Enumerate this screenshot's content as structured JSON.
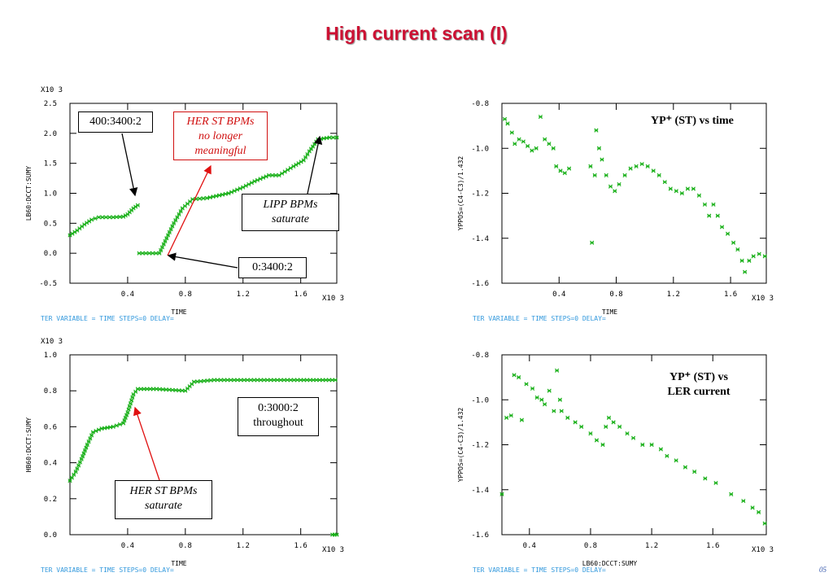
{
  "slide": {
    "title": "High current scan (I)",
    "page_number": "05"
  },
  "colors": {
    "marker": "#19b019",
    "title": "#cc1133",
    "arrow_red": "#e01010"
  },
  "chart_data": [
    {
      "id": "tl",
      "type": "line",
      "ylabel": "LB60:DCCT:SUMY",
      "xlabel": "TIME",
      "x_multiplier": "X10 3",
      "y_multiplier": "X10 3",
      "footer": "TER VARIABLE = TIME  STEPS=0 DELAY=",
      "xlim": [
        0,
        1.85
      ],
      "ylim": [
        -0.5,
        2.5
      ],
      "x_ticks": [
        "0.4",
        "0.8",
        "1.2",
        "1.6"
      ],
      "y_ticks": [
        "2.5",
        "2.0",
        "1.5",
        "1.0",
        "0.5",
        "0.0",
        "-0.5"
      ],
      "series": [
        {
          "values": [
            [
              0.0,
              0.3
            ],
            [
              0.05,
              0.38
            ],
            [
              0.1,
              0.48
            ],
            [
              0.15,
              0.56
            ],
            [
              0.2,
              0.6
            ],
            [
              0.3,
              0.6
            ],
            [
              0.37,
              0.61
            ],
            [
              0.4,
              0.65
            ],
            [
              0.44,
              0.75
            ],
            [
              0.47,
              0.8
            ]
          ]
        },
        {
          "values": [
            [
              0.48,
              0.0
            ],
            [
              0.62,
              0.0
            ],
            [
              0.66,
              0.2
            ],
            [
              0.72,
              0.5
            ],
            [
              0.78,
              0.75
            ],
            [
              0.85,
              0.9
            ],
            [
              0.95,
              0.92
            ],
            [
              1.1,
              1.0
            ],
            [
              1.2,
              1.1
            ],
            [
              1.28,
              1.2
            ],
            [
              1.38,
              1.3
            ],
            [
              1.45,
              1.3
            ],
            [
              1.55,
              1.45
            ],
            [
              1.62,
              1.55
            ],
            [
              1.66,
              1.7
            ],
            [
              1.72,
              1.9
            ],
            [
              1.8,
              1.93
            ],
            [
              1.85,
              1.93
            ]
          ]
        }
      ],
      "annotations": [
        {
          "text": "400:3400:2"
        },
        {
          "lines": [
            "HER ST BPMs",
            "no longer",
            "meaningful"
          ]
        },
        {
          "lines": [
            "LIPP BPMs",
            "saturate"
          ]
        },
        {
          "text": "0:3400:2"
        }
      ]
    },
    {
      "id": "tr",
      "type": "scatter",
      "ylabel": "YPPOS=(C4-C3)/1.432",
      "xlabel": "TIME",
      "x_multiplier": "X10 3",
      "footer": "TER VARIABLE = TIME  STEPS=0 DELAY=",
      "xlim": [
        0,
        1.85
      ],
      "ylim": [
        -1.6,
        -0.8
      ],
      "x_ticks": [
        "0.4",
        "0.8",
        "1.2",
        "1.6"
      ],
      "y_ticks": [
        "-0.8",
        "-1.0",
        "-1.2",
        "-1.4",
        "-1.6"
      ],
      "annotation": "YP⁺ (ST) vs time",
      "points": [
        [
          0.02,
          -0.87
        ],
        [
          0.04,
          -0.89
        ],
        [
          0.07,
          -0.93
        ],
        [
          0.09,
          -0.98
        ],
        [
          0.12,
          -0.96
        ],
        [
          0.15,
          -0.97
        ],
        [
          0.18,
          -0.99
        ],
        [
          0.21,
          -1.01
        ],
        [
          0.24,
          -1.0
        ],
        [
          0.27,
          -0.86
        ],
        [
          0.3,
          -0.96
        ],
        [
          0.33,
          -0.98
        ],
        [
          0.36,
          -1.0
        ],
        [
          0.38,
          -1.08
        ],
        [
          0.41,
          -1.1
        ],
        [
          0.44,
          -1.11
        ],
        [
          0.47,
          -1.09
        ],
        [
          0.62,
          -1.08
        ],
        [
          0.63,
          -1.42
        ],
        [
          0.65,
          -1.12
        ],
        [
          0.66,
          -0.92
        ],
        [
          0.68,
          -1.0
        ],
        [
          0.7,
          -1.05
        ],
        [
          0.73,
          -1.12
        ],
        [
          0.76,
          -1.17
        ],
        [
          0.79,
          -1.19
        ],
        [
          0.82,
          -1.16
        ],
        [
          0.86,
          -1.12
        ],
        [
          0.9,
          -1.09
        ],
        [
          0.94,
          -1.08
        ],
        [
          0.98,
          -1.07
        ],
        [
          1.02,
          -1.08
        ],
        [
          1.06,
          -1.1
        ],
        [
          1.1,
          -1.12
        ],
        [
          1.14,
          -1.15
        ],
        [
          1.18,
          -1.18
        ],
        [
          1.22,
          -1.19
        ],
        [
          1.26,
          -1.2
        ],
        [
          1.3,
          -1.18
        ],
        [
          1.34,
          -1.18
        ],
        [
          1.38,
          -1.21
        ],
        [
          1.42,
          -1.25
        ],
        [
          1.45,
          -1.3
        ],
        [
          1.48,
          -1.25
        ],
        [
          1.51,
          -1.3
        ],
        [
          1.54,
          -1.35
        ],
        [
          1.58,
          -1.38
        ],
        [
          1.62,
          -1.42
        ],
        [
          1.65,
          -1.45
        ],
        [
          1.68,
          -1.5
        ],
        [
          1.7,
          -1.55
        ],
        [
          1.73,
          -1.5
        ],
        [
          1.76,
          -1.48
        ],
        [
          1.8,
          -1.47
        ],
        [
          1.84,
          -1.48
        ]
      ]
    },
    {
      "id": "bl",
      "type": "line",
      "ylabel": "HB60:DCCT:SUMY",
      "xlabel": "TIME",
      "x_multiplier": "X10 3",
      "y_multiplier": "X10 3",
      "footer": "TER VARIABLE = TIME  STEPS=0 DELAY=",
      "xlim": [
        0,
        1.85
      ],
      "ylim": [
        0.0,
        1.0
      ],
      "x_ticks": [
        "0.4",
        "0.8",
        "1.2",
        "1.6"
      ],
      "y_ticks": [
        "1.0",
        "0.8",
        "0.6",
        "0.4",
        "0.2",
        "0.0"
      ],
      "series": [
        {
          "values": [
            [
              0.0,
              0.3
            ],
            [
              0.04,
              0.35
            ],
            [
              0.08,
              0.42
            ],
            [
              0.12,
              0.5
            ],
            [
              0.16,
              0.57
            ],
            [
              0.22,
              0.59
            ],
            [
              0.3,
              0.6
            ],
            [
              0.37,
              0.62
            ],
            [
              0.4,
              0.68
            ],
            [
              0.44,
              0.78
            ],
            [
              0.47,
              0.81
            ],
            [
              0.6,
              0.81
            ],
            [
              0.8,
              0.8
            ],
            [
              0.86,
              0.85
            ],
            [
              1.0,
              0.86
            ],
            [
              1.3,
              0.86
            ],
            [
              1.6,
              0.86
            ],
            [
              1.84,
              0.86
            ]
          ]
        },
        {
          "values": [
            [
              1.82,
              0.0
            ],
            [
              1.85,
              0.0
            ]
          ]
        }
      ],
      "annotations": [
        {
          "lines": [
            "0:3000:2",
            "throughout"
          ]
        },
        {
          "lines": [
            "HER ST BPMs",
            "saturate"
          ]
        }
      ]
    },
    {
      "id": "br",
      "type": "scatter",
      "ylabel": "YPPOS=(C4-C3)/1.432",
      "xlabel": "LB60:DCCT:SUMY",
      "x_multiplier": "X10 3",
      "footer": "TER VARIABLE = TIME  STEPS=0 DELAY=",
      "xlim": [
        0.22,
        1.95
      ],
      "ylim": [
        -1.6,
        -0.8
      ],
      "x_ticks": [
        "0.4",
        "0.8",
        "1.2",
        "1.6"
      ],
      "y_ticks": [
        "-0.8",
        "-1.0",
        "-1.2",
        "-1.4",
        "-1.6"
      ],
      "annotation_lines": [
        "YP⁺ (ST) vs",
        "LER current"
      ],
      "points": [
        [
          0.22,
          -1.42
        ],
        [
          0.25,
          -1.08
        ],
        [
          0.28,
          -1.07
        ],
        [
          0.3,
          -0.89
        ],
        [
          0.33,
          -0.9
        ],
        [
          0.35,
          -1.09
        ],
        [
          0.38,
          -0.93
        ],
        [
          0.42,
          -0.95
        ],
        [
          0.45,
          -0.99
        ],
        [
          0.48,
          -1.0
        ],
        [
          0.5,
          -1.02
        ],
        [
          0.53,
          -0.96
        ],
        [
          0.56,
          -1.05
        ],
        [
          0.58,
          -0.87
        ],
        [
          0.6,
          -1.0
        ],
        [
          0.61,
          -1.05
        ],
        [
          0.65,
          -1.08
        ],
        [
          0.7,
          -1.1
        ],
        [
          0.74,
          -1.12
        ],
        [
          0.8,
          -1.15
        ],
        [
          0.84,
          -1.18
        ],
        [
          0.88,
          -1.2
        ],
        [
          0.9,
          -1.12
        ],
        [
          0.92,
          -1.08
        ],
        [
          0.95,
          -1.1
        ],
        [
          0.99,
          -1.12
        ],
        [
          1.04,
          -1.15
        ],
        [
          1.08,
          -1.17
        ],
        [
          1.14,
          -1.2
        ],
        [
          1.2,
          -1.2
        ],
        [
          1.26,
          -1.22
        ],
        [
          1.3,
          -1.25
        ],
        [
          1.36,
          -1.27
        ],
        [
          1.42,
          -1.3
        ],
        [
          1.48,
          -1.32
        ],
        [
          1.55,
          -1.35
        ],
        [
          1.62,
          -1.37
        ],
        [
          1.72,
          -1.42
        ],
        [
          1.8,
          -1.45
        ],
        [
          1.86,
          -1.48
        ],
        [
          1.9,
          -1.5
        ],
        [
          1.94,
          -1.55
        ]
      ]
    }
  ]
}
